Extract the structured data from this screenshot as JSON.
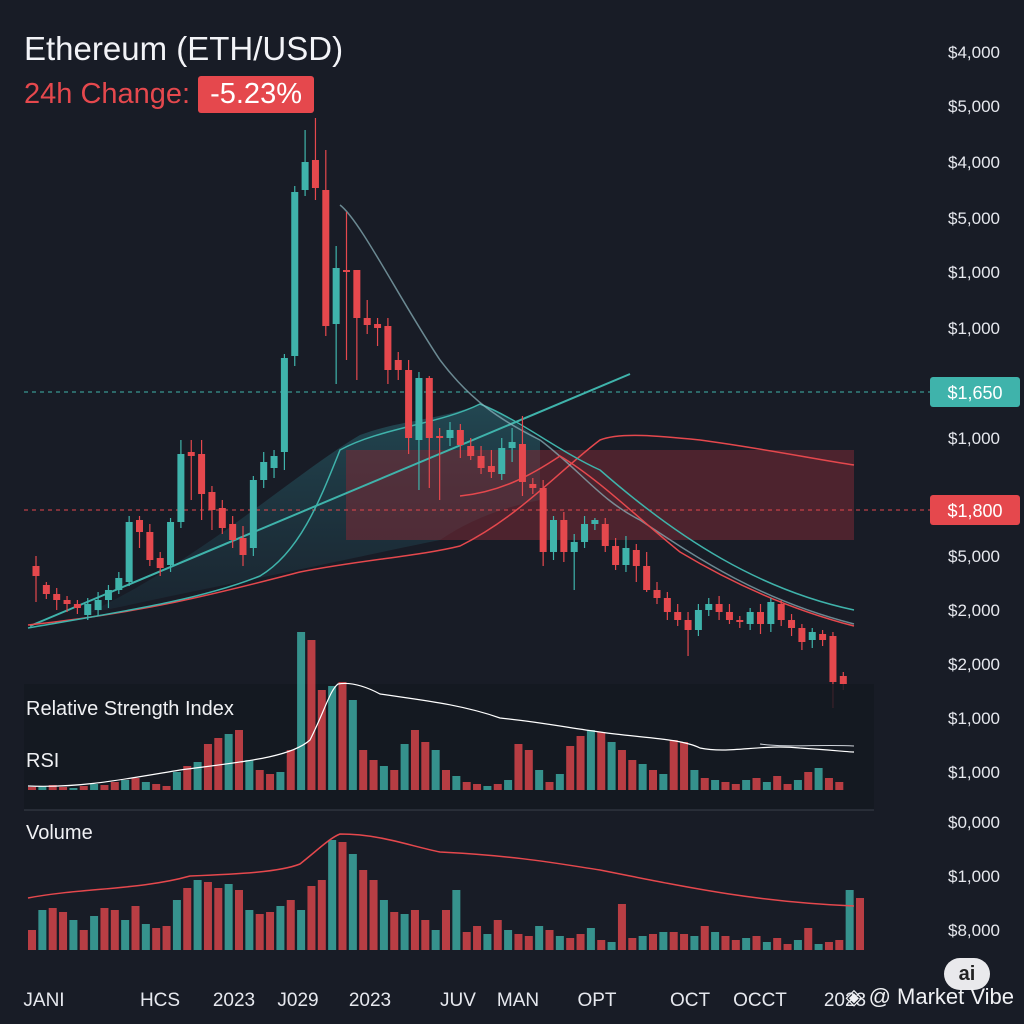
{
  "header": {
    "title": "Ethereum (ETH/USD)",
    "change_label": "24h Change:",
    "change_value": "-5.23%"
  },
  "panels": {
    "rsi_title": "Relative Strength Index",
    "rsi_label": "RSI",
    "volume_label": "Volume"
  },
  "brand": {
    "text": "@ Market Vibe",
    "ai_badge": "ai"
  },
  "colors": {
    "background": "#181c26",
    "bull": "#3fb3ab",
    "bear": "#e5484d",
    "accent_line": "#3fb3ab"
  },
  "chart_data": {
    "type": "candlestick",
    "y_axis_labels": [
      "$4,000",
      "$5,000",
      "$4,000",
      "$5,000",
      "$1,000",
      "$1,000",
      "$1,000",
      "$5,000",
      "$2,000",
      "$2,000",
      "$1,000",
      "$1,000",
      "$0,000",
      "$1,000",
      "$8,000"
    ],
    "x_axis_labels": [
      "JANI",
      "HCS",
      "2023",
      "J029",
      "2023",
      "JUV",
      "MAN",
      "OPT",
      "OCT",
      "OCCT",
      "2023"
    ],
    "price_markers": [
      {
        "label": "$1,650",
        "color": "#3fb3ab"
      },
      {
        "label": "$1,800",
        "color": "#e5484d"
      }
    ],
    "candles": [
      [
        566,
        576,
        556,
        602
      ],
      [
        585,
        594,
        582,
        599
      ],
      [
        594,
        600,
        588,
        610
      ],
      [
        600,
        604,
        596,
        612
      ],
      [
        604,
        608,
        600,
        614
      ],
      [
        615,
        604,
        598,
        620
      ],
      [
        610,
        600,
        592,
        616
      ],
      [
        600,
        590,
        585,
        608
      ],
      [
        590,
        578,
        572,
        594
      ],
      [
        582,
        522,
        516,
        586
      ],
      [
        520,
        532,
        516,
        548
      ],
      [
        532,
        560,
        524,
        566
      ],
      [
        558,
        568,
        552,
        576
      ],
      [
        565,
        522,
        518,
        572
      ],
      [
        522,
        454,
        440,
        528
      ],
      [
        452,
        456,
        440,
        500
      ],
      [
        454,
        494,
        440,
        520
      ],
      [
        492,
        510,
        486,
        530
      ],
      [
        508,
        528,
        500,
        534
      ],
      [
        524,
        540,
        516,
        548
      ],
      [
        538,
        555,
        526,
        566
      ],
      [
        548,
        480,
        476,
        556
      ],
      [
        480,
        462,
        452,
        488
      ],
      [
        468,
        456,
        450,
        478
      ],
      [
        452,
        358,
        354,
        470
      ],
      [
        356,
        192,
        186,
        366
      ],
      [
        190,
        162,
        130,
        196
      ],
      [
        160,
        188,
        118,
        200
      ],
      [
        190,
        326,
        150,
        336
      ],
      [
        324,
        268,
        246,
        384
      ],
      [
        270,
        272,
        212,
        360
      ],
      [
        270,
        318,
        270,
        380
      ],
      [
        318,
        325,
        300,
        334
      ],
      [
        324,
        328,
        318,
        346
      ],
      [
        326,
        370,
        318,
        384
      ],
      [
        360,
        370,
        352,
        380
      ],
      [
        370,
        438,
        360,
        454
      ],
      [
        440,
        378,
        372,
        490
      ],
      [
        378,
        438,
        376,
        488
      ],
      [
        436,
        438,
        428,
        500
      ],
      [
        438,
        430,
        422,
        446
      ],
      [
        430,
        445,
        424,
        458
      ],
      [
        446,
        456,
        438,
        460
      ],
      [
        456,
        468,
        446,
        474
      ],
      [
        466,
        472,
        450,
        478
      ],
      [
        474,
        448,
        438,
        480
      ],
      [
        448,
        442,
        428,
        462
      ],
      [
        444,
        482,
        416,
        496
      ],
      [
        484,
        488,
        478,
        494
      ],
      [
        488,
        552,
        480,
        566
      ],
      [
        552,
        520,
        516,
        560
      ],
      [
        520,
        552,
        512,
        562
      ],
      [
        552,
        542,
        534,
        590
      ],
      [
        542,
        524,
        516,
        548
      ],
      [
        524,
        520,
        518,
        530
      ],
      [
        524,
        546,
        518,
        552
      ],
      [
        546,
        565,
        538,
        570
      ],
      [
        565,
        548,
        536,
        572
      ],
      [
        550,
        566,
        544,
        582
      ],
      [
        566,
        590,
        552,
        592
      ],
      [
        590,
        598,
        582,
        604
      ],
      [
        598,
        612,
        592,
        620
      ],
      [
        612,
        620,
        604,
        626
      ],
      [
        620,
        630,
        612,
        656
      ],
      [
        630,
        610,
        604,
        636
      ],
      [
        610,
        604,
        598,
        616
      ],
      [
        604,
        612,
        596,
        620
      ],
      [
        612,
        620,
        604,
        624
      ],
      [
        620,
        622,
        616,
        628
      ],
      [
        624,
        612,
        608,
        630
      ],
      [
        612,
        624,
        604,
        634
      ],
      [
        624,
        602,
        598,
        632
      ],
      [
        604,
        620,
        600,
        626
      ],
      [
        620,
        628,
        614,
        636
      ],
      [
        628,
        642,
        624,
        650
      ],
      [
        640,
        632,
        628,
        648
      ],
      [
        634,
        640,
        630,
        646
      ],
      [
        636,
        682,
        632,
        708
      ],
      [
        676,
        684,
        672,
        690
      ]
    ],
    "moving_averages": [
      {
        "name": "",
        "color": "#3fb3ab"
      },
      {
        "name": "",
        "color": "#e5484d"
      }
    ]
  }
}
